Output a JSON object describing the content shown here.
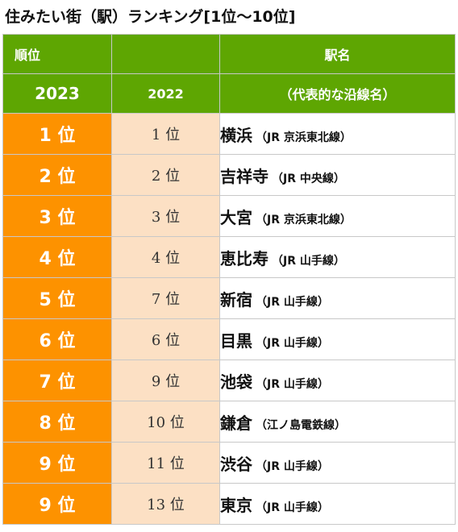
{
  "title": "住みたい街（駅）ランキング[1位～10位]",
  "header": {
    "rank_label": "順位",
    "station_label": "駅名",
    "year_current": "2023",
    "year_previous": "2022",
    "line_label": "（代表的な沿線名）"
  },
  "rows": [
    {
      "rank_2023": "1 位",
      "rank_2022": "1 位",
      "station": "横浜",
      "line": "（JR 京浜東北線）"
    },
    {
      "rank_2023": "2 位",
      "rank_2022": "2 位",
      "station": "吉祥寺",
      "line": "（JR 中央線）"
    },
    {
      "rank_2023": "3 位",
      "rank_2022": "3 位",
      "station": "大宮",
      "line": "（JR 京浜東北線）"
    },
    {
      "rank_2023": "4 位",
      "rank_2022": "4 位",
      "station": "恵比寿",
      "line": "（JR 山手線）"
    },
    {
      "rank_2023": "5 位",
      "rank_2022": "7 位",
      "station": "新宿",
      "line": "（JR 山手線）"
    },
    {
      "rank_2023": "6 位",
      "rank_2022": "6 位",
      "station": "目黒",
      "line": "（JR 山手線）"
    },
    {
      "rank_2023": "7 位",
      "rank_2022": "9 位",
      "station": "池袋",
      "line": "（JR 山手線）"
    },
    {
      "rank_2023": "8 位",
      "rank_2022": "10 位",
      "station": "鎌倉",
      "line": "（江ノ島電鉄線）"
    },
    {
      "rank_2023": "9 位",
      "rank_2022": "11 位",
      "station": "渋谷",
      "line": "（JR 山手線）"
    },
    {
      "rank_2023": "9 位",
      "rank_2022": "13 位",
      "station": "東京",
      "line": "（JR 山手線）"
    }
  ],
  "colors": {
    "header_green": "#5ea602",
    "rank_orange": "#fd9200",
    "prev_rank_bg": "#fce0c4"
  }
}
